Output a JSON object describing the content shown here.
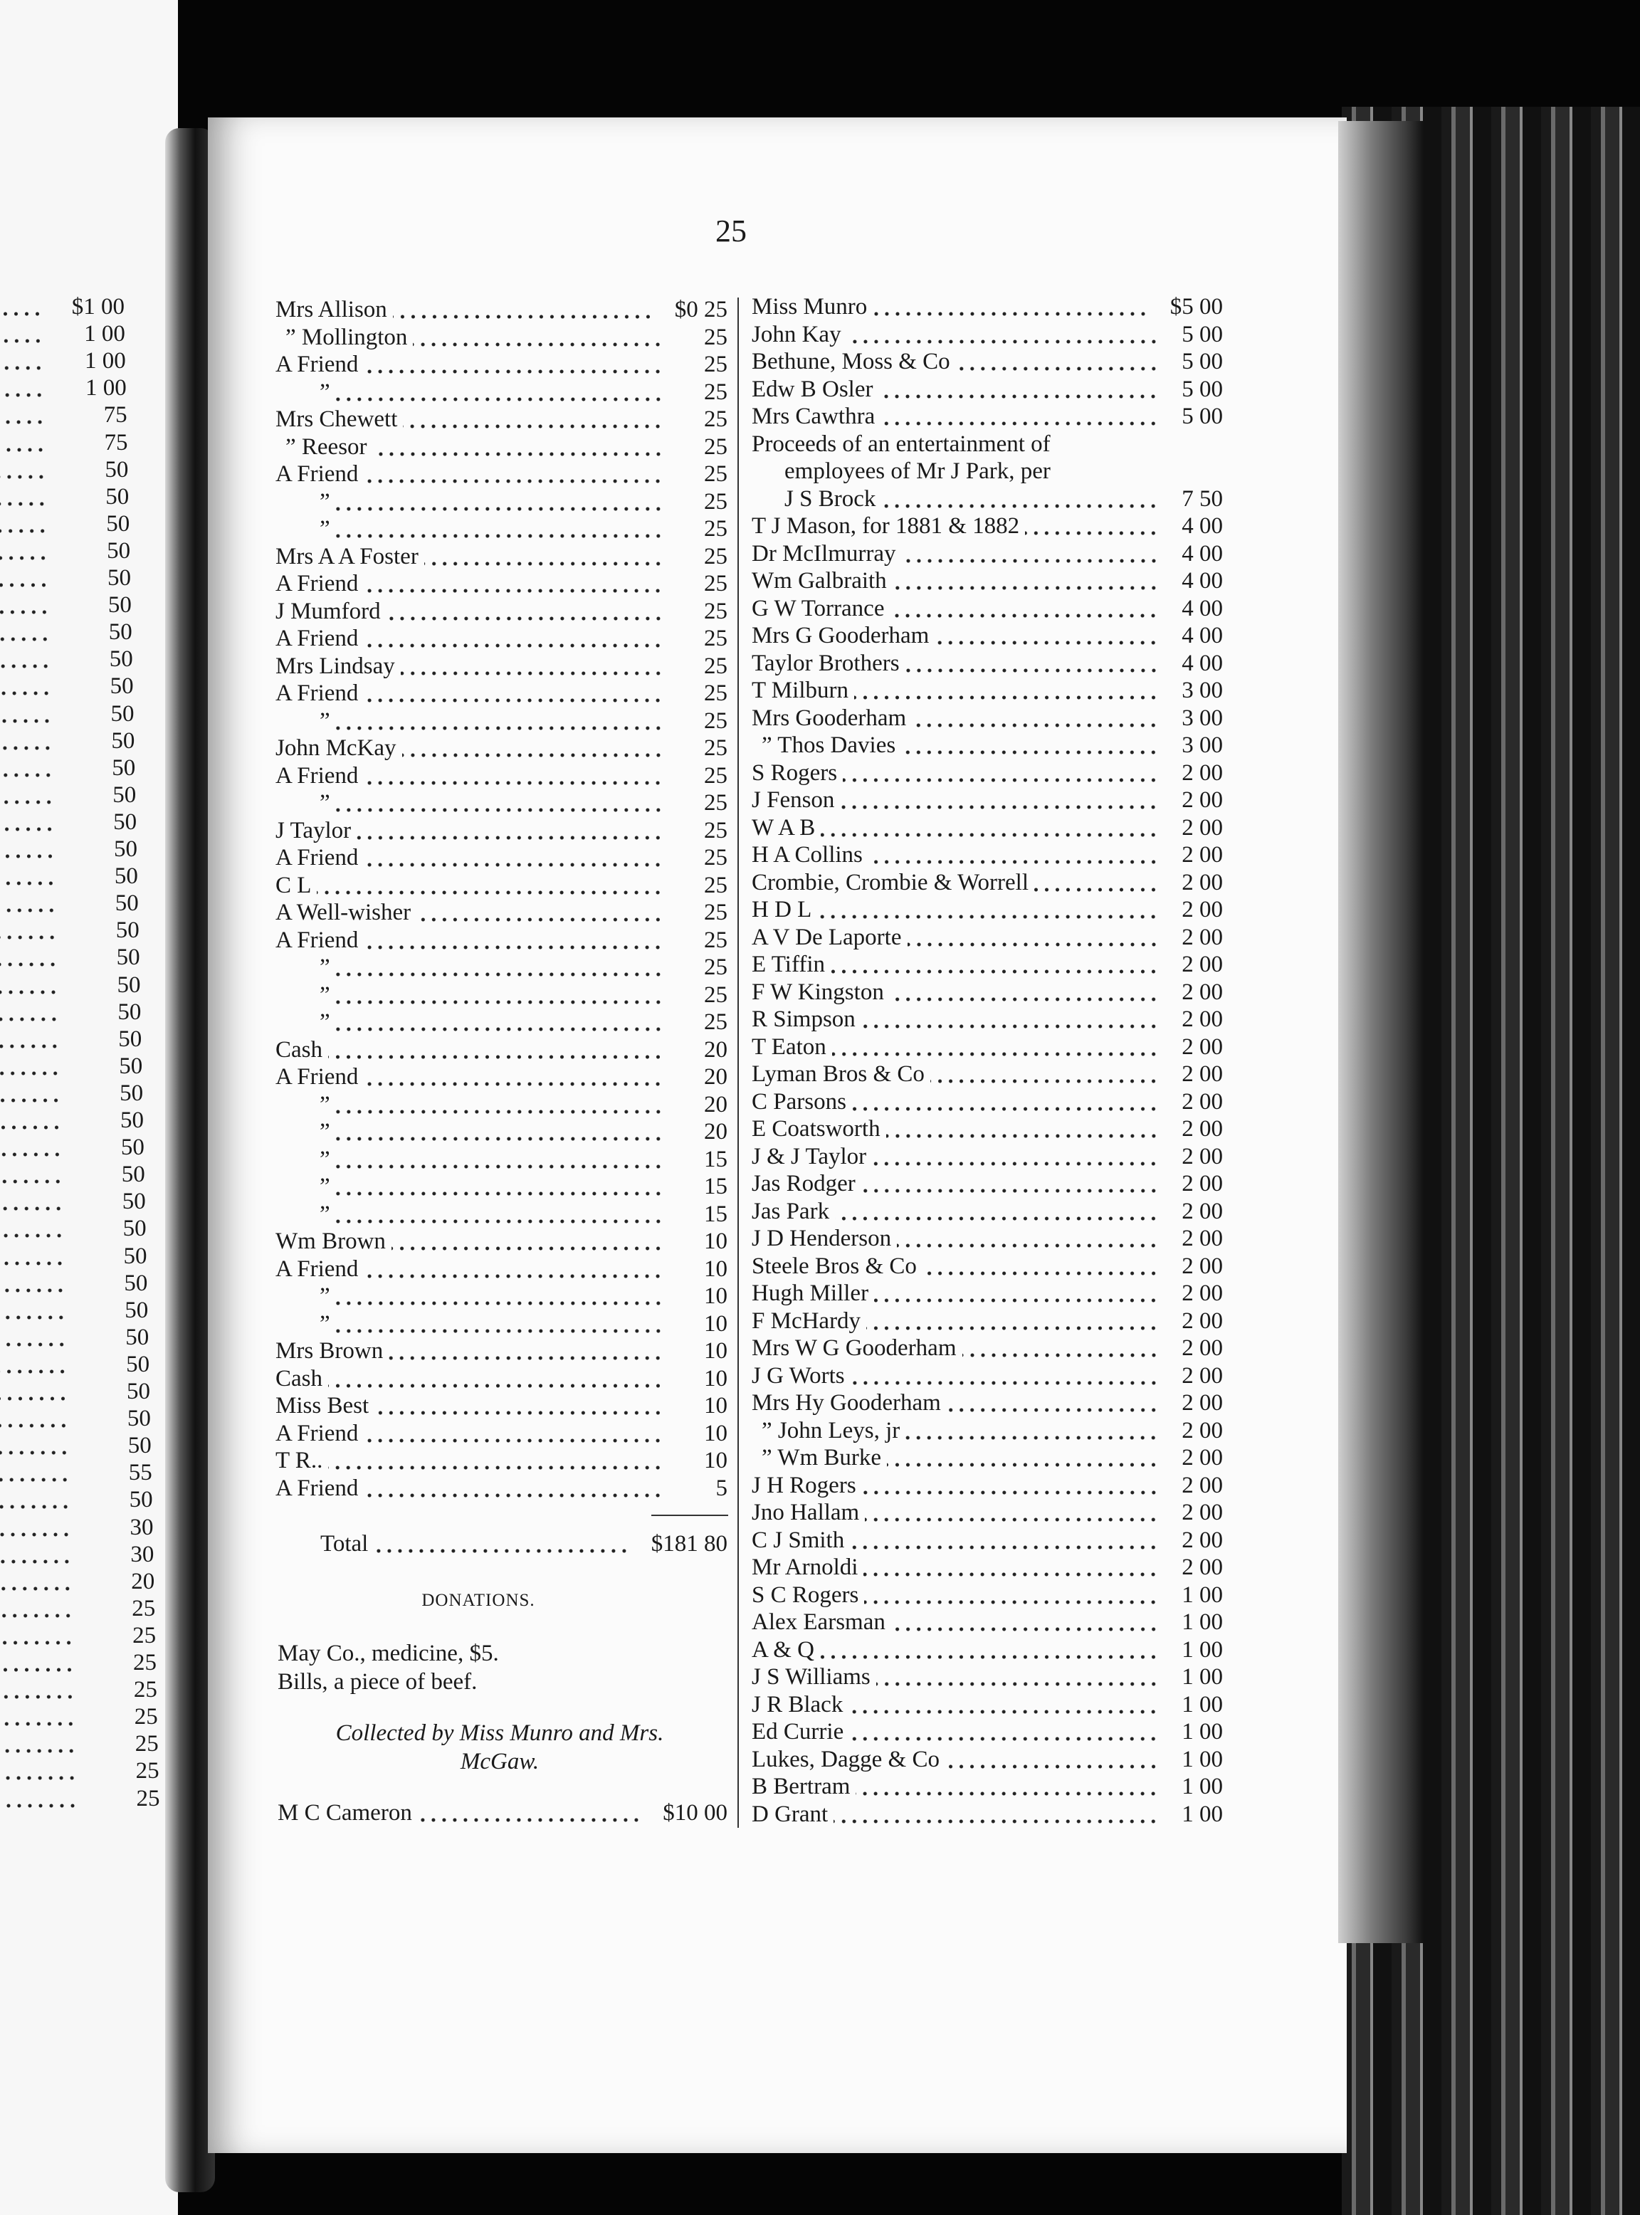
{
  "page_number": "25",
  "left_page_amounts": [
    "$1 00",
    "1 00",
    "1 00",
    "1 00",
    "75",
    "75",
    "50",
    "50",
    "50",
    "50",
    "50",
    "50",
    "50",
    "50",
    "50",
    "50",
    "50",
    "50",
    "50",
    "50",
    "50",
    "50",
    "50",
    "50",
    "50",
    "50",
    "50",
    "50",
    "50",
    "50",
    "50",
    "50",
    "50",
    "50",
    "50",
    "50",
    "50",
    "50",
    "50",
    "50",
    "50",
    "50",
    "50",
    "55",
    "50",
    "30",
    "30",
    "20",
    "25",
    "25",
    "25",
    "25",
    "25",
    "25",
    "25",
    "25"
  ],
  "middle_column": {
    "entries": [
      {
        "name": "Mrs Allison",
        "amount": "$0 25"
      },
      {
        "name": "” Mollington",
        "amount": "25"
      },
      {
        "name": "A Friend",
        "amount": "25"
      },
      {
        "name": "”",
        "amount": "25"
      },
      {
        "name": "Mrs Chewett",
        "amount": "25"
      },
      {
        "name": "” Reesor",
        "amount": "25"
      },
      {
        "name": "A Friend",
        "amount": "25"
      },
      {
        "name": "”",
        "amount": "25"
      },
      {
        "name": "”",
        "amount": "25"
      },
      {
        "name": "Mrs A A Foster",
        "amount": "25"
      },
      {
        "name": "A Friend",
        "amount": "25"
      },
      {
        "name": "J Mumford",
        "amount": "25"
      },
      {
        "name": "A Friend",
        "amount": "25"
      },
      {
        "name": "Mrs Lindsay",
        "amount": "25"
      },
      {
        "name": "A Friend",
        "amount": "25"
      },
      {
        "name": "”",
        "amount": "25"
      },
      {
        "name": "John McKay",
        "amount": "25"
      },
      {
        "name": "A Friend",
        "amount": "25"
      },
      {
        "name": "”",
        "amount": "25"
      },
      {
        "name": "J Taylor",
        "amount": "25"
      },
      {
        "name": "A Friend",
        "amount": "25"
      },
      {
        "name": "C L",
        "amount": "25"
      },
      {
        "name": "A Well-wisher",
        "amount": "25"
      },
      {
        "name": "A Friend",
        "amount": "25"
      },
      {
        "name": "”",
        "amount": "25"
      },
      {
        "name": "”",
        "amount": "25"
      },
      {
        "name": "”",
        "amount": "25"
      },
      {
        "name": "Cash",
        "amount": "20"
      },
      {
        "name": "A Friend",
        "amount": "20"
      },
      {
        "name": "”",
        "amount": "20"
      },
      {
        "name": "”",
        "amount": "20"
      },
      {
        "name": "”",
        "amount": "15"
      },
      {
        "name": "”",
        "amount": "15"
      },
      {
        "name": "”",
        "amount": "15"
      },
      {
        "name": "Wm Brown",
        "amount": "10"
      },
      {
        "name": "A Friend",
        "amount": "10"
      },
      {
        "name": "”",
        "amount": "10"
      },
      {
        "name": "”",
        "amount": "10"
      },
      {
        "name": "Mrs Brown",
        "amount": "10"
      },
      {
        "name": "Cash",
        "amount": "10"
      },
      {
        "name": "Miss Best",
        "amount": "10"
      },
      {
        "name": "A Friend",
        "amount": "10"
      },
      {
        "name": "T R..",
        "amount": "10"
      },
      {
        "name": "A Friend",
        "amount": "5"
      }
    ],
    "total": {
      "label": "Total",
      "amount": "$181 80"
    },
    "donations_heading": "DONATIONS.",
    "donations": [
      "May Co., medicine, $5.",
      "Bills, a piece of beef."
    ],
    "collected_by": [
      "Collected by Miss Munro and Mrs.",
      "McGaw."
    ],
    "collected_entries": [
      {
        "name": "M C Cameron",
        "amount": "$10 00"
      }
    ]
  },
  "right_column": {
    "entries": [
      {
        "name": "Miss Munro",
        "amount": "$5 00"
      },
      {
        "name": "John Kay",
        "amount": "5 00"
      },
      {
        "name": "Bethune, Moss & Co",
        "amount": "5 00"
      },
      {
        "name": "Edw B Osler",
        "amount": "5 00"
      },
      {
        "name": "Mrs Cawthra",
        "amount": "5 00"
      },
      {
        "lines": [
          "Proceeds of an entertainment of",
          "employees of Mr J Park, per",
          "J S Brock"
        ],
        "amount": "7 50"
      },
      {
        "name": "T J Mason, for 1881 & 1882",
        "amount": "4 00"
      },
      {
        "name": "Dr McIlmurray",
        "amount": "4 00"
      },
      {
        "name": "Wm Galbraith",
        "amount": "4 00"
      },
      {
        "name": "G W Torrance",
        "amount": "4 00"
      },
      {
        "name": "Mrs G Gooderham",
        "amount": "4 00"
      },
      {
        "name": "Taylor Brothers",
        "amount": "4 00"
      },
      {
        "name": "T Milburn",
        "amount": "3 00"
      },
      {
        "name": "Mrs Gooderham",
        "amount": "3 00"
      },
      {
        "name": "” Thos Davies",
        "amount": "3 00"
      },
      {
        "name": "S Rogers",
        "amount": "2 00"
      },
      {
        "name": "J Fenson",
        "amount": "2 00"
      },
      {
        "name": "W A B",
        "amount": "2 00"
      },
      {
        "name": "H A Collins",
        "amount": "2 00"
      },
      {
        "name": "Crombie, Crombie & Worrell",
        "amount": "2 00"
      },
      {
        "name": "H D L",
        "amount": "2 00"
      },
      {
        "name": "A V De Laporte",
        "amount": "2 00"
      },
      {
        "name": "E Tiffin",
        "amount": "2 00"
      },
      {
        "name": "F W Kingston",
        "amount": "2 00"
      },
      {
        "name": "R Simpson",
        "amount": "2 00"
      },
      {
        "name": "T Eaton",
        "amount": "2 00"
      },
      {
        "name": "Lyman Bros & Co",
        "amount": "2 00"
      },
      {
        "name": "C Parsons",
        "amount": "2 00"
      },
      {
        "name": "E Coatsworth",
        "amount": "2 00"
      },
      {
        "name": "J & J Taylor",
        "amount": "2 00"
      },
      {
        "name": "Jas Rodger",
        "amount": "2 00"
      },
      {
        "name": "Jas Park",
        "amount": "2 00"
      },
      {
        "name": "J D Henderson",
        "amount": "2 00"
      },
      {
        "name": "Steele Bros & Co",
        "amount": "2 00"
      },
      {
        "name": "Hugh Miller",
        "amount": "2 00"
      },
      {
        "name": "F McHardy",
        "amount": "2 00"
      },
      {
        "name": "Mrs W G Gooderham",
        "amount": "2 00"
      },
      {
        "name": "J G Worts",
        "amount": "2 00"
      },
      {
        "name": "Mrs Hy Gooderham",
        "amount": "2 00"
      },
      {
        "name": "” John Leys, jr",
        "amount": "2 00"
      },
      {
        "name": "” Wm Burke",
        "amount": "2 00"
      },
      {
        "name": "J H Rogers",
        "amount": "2 00"
      },
      {
        "name": "Jno Hallam",
        "amount": "2 00"
      },
      {
        "name": "C J Smith",
        "amount": "2 00"
      },
      {
        "name": "Mr Arnoldi",
        "amount": "2 00"
      },
      {
        "name": "S C Rogers",
        "amount": "1 00"
      },
      {
        "name": "Alex Earsman",
        "amount": "1 00"
      },
      {
        "name": "A & Q",
        "amount": "1 00"
      },
      {
        "name": "J S Williams",
        "amount": "1 00"
      },
      {
        "name": "J R Black",
        "amount": "1 00"
      },
      {
        "name": "Ed Currie",
        "amount": "1 00"
      },
      {
        "name": "Lukes, Dagge & Co",
        "amount": "1 00"
      },
      {
        "name": "B Bertram",
        "amount": "1 00"
      },
      {
        "name": "D Grant",
        "amount": "1 00"
      }
    ]
  }
}
